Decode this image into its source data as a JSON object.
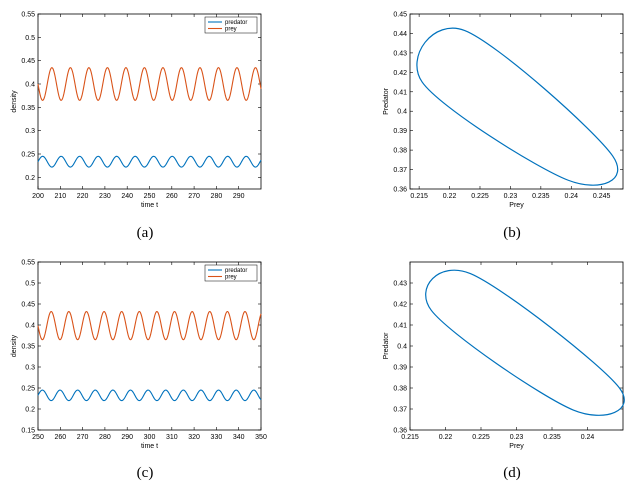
{
  "colors": {
    "predator": "#0072BD",
    "prey": "#D95319",
    "axis": "#000000",
    "background": "#ffffff"
  },
  "captions": [
    "(a)",
    "(b)",
    "(c)",
    "(d)"
  ],
  "chart_data": [
    {
      "type": "line",
      "caption": "(a)",
      "xlabel": "time t",
      "ylabel": "density",
      "xlim": [
        200,
        300
      ],
      "ylim": [
        0.175,
        0.55
      ],
      "xticks": [
        200,
        210,
        220,
        230,
        240,
        250,
        260,
        270,
        280,
        290
      ],
      "yticks": [
        0.2,
        0.25,
        0.3,
        0.35,
        0.4,
        0.45,
        0.5,
        0.55
      ],
      "legend": "top-right",
      "period": 8.3,
      "series": [
        {
          "name": "predator",
          "color": "#0072BD",
          "min": 0.222,
          "max": 0.245,
          "phase": 0.0
        },
        {
          "name": "prey",
          "color": "#D95319",
          "min": 0.365,
          "max": 0.435,
          "phase": 3.14
        }
      ]
    },
    {
      "type": "line",
      "caption": "(b)",
      "xlabel": "Prey",
      "ylabel": "Predator",
      "xlim": [
        0.2135,
        0.2485
      ],
      "ylim": [
        0.36,
        0.45
      ],
      "xticks": [
        0.215,
        0.22,
        0.225,
        0.23,
        0.235,
        0.24,
        0.245
      ],
      "yticks": [
        0.36,
        0.37,
        0.38,
        0.39,
        0.4,
        0.41,
        0.42,
        0.43,
        0.44,
        0.45
      ],
      "loop_extremes": {
        "prey_min": 0.2155,
        "predator_at_prey_min": 0.415,
        "prey_max": 0.2468,
        "predator_at_prey_max": 0.377,
        "predator_min": 0.3645,
        "prey_at_predator_min": 0.2395,
        "predator_max": 0.4415,
        "prey_at_predator_max": 0.2225
      },
      "series": [
        {
          "color": "#0072BD"
        }
      ]
    },
    {
      "type": "line",
      "caption": "(c)",
      "xlabel": "time t",
      "ylabel": "density",
      "xlim": [
        250,
        350
      ],
      "ylim": [
        0.15,
        0.55
      ],
      "xticks": [
        250,
        260,
        270,
        280,
        290,
        300,
        310,
        320,
        330,
        340,
        350
      ],
      "yticks": [
        0.15,
        0.2,
        0.25,
        0.3,
        0.35,
        0.4,
        0.45,
        0.5,
        0.55
      ],
      "legend": "top-right",
      "period": 7.9,
      "series": [
        {
          "name": "predator",
          "color": "#0072BD",
          "min": 0.22,
          "max": 0.245,
          "phase": 0.0
        },
        {
          "name": "prey",
          "color": "#D95319",
          "min": 0.365,
          "max": 0.432,
          "phase": 3.14
        }
      ]
    },
    {
      "type": "line",
      "caption": "(d)",
      "xlabel": "Prey",
      "ylabel": "Predator",
      "xlim": [
        0.215,
        0.245
      ],
      "ylim": [
        0.36,
        0.44
      ],
      "xticks": [
        0.215,
        0.22,
        0.225,
        0.23,
        0.235,
        0.24
      ],
      "yticks": [
        0.36,
        0.37,
        0.38,
        0.39,
        0.4,
        0.41,
        0.42,
        0.43
      ],
      "loop_extremes": {
        "prey_min": 0.218,
        "predator_at_prey_min": 0.417,
        "prey_max": 0.2445,
        "predator_at_prey_max": 0.38,
        "predator_min": 0.3695,
        "prey_at_predator_min": 0.238,
        "predator_max": 0.4345,
        "prey_at_predator_max": 0.2235
      },
      "series": [
        {
          "color": "#0072BD"
        }
      ]
    }
  ]
}
